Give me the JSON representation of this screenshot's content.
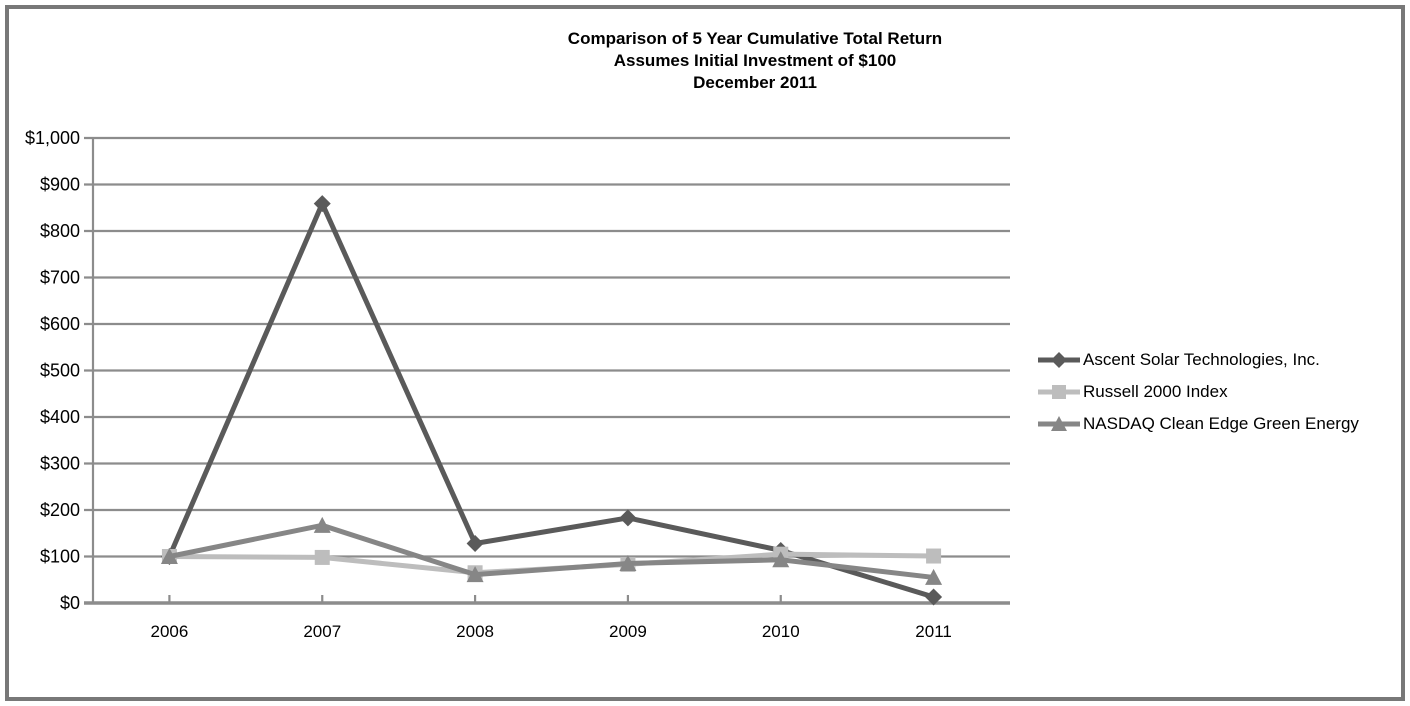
{
  "title": {
    "line1": "Comparison of 5 Year Cumulative Total Return",
    "line2": "Assumes Initial Investment of $100",
    "line3": "December 2011"
  },
  "colors": {
    "ascent": "#5a5a5a",
    "russell": "#bdbdbd",
    "nasdaq": "#868686",
    "gridline": "#8c8c8c",
    "axis": "#8c8c8c",
    "frame": "#787878",
    "text": "#000000",
    "background": "#ffffff"
  },
  "chart_data": {
    "type": "line",
    "title": "Comparison of 5 Year Cumulative Total Return / Assumes Initial Investment of $100 / December 2011",
    "xlabel": "",
    "ylabel": "",
    "categories": [
      "2006",
      "2007",
      "2008",
      "2009",
      "2010",
      "2011"
    ],
    "series": [
      {
        "name": "Ascent Solar Technologies, Inc.",
        "marker": "diamond",
        "color_key": "ascent",
        "values": [
          100,
          859,
          128,
          183,
          113,
          13
        ]
      },
      {
        "name": "Russell 2000 Index",
        "marker": "square",
        "color_key": "russell",
        "values": [
          100,
          98,
          65,
          83,
          105,
          101
        ]
      },
      {
        "name": "NASDAQ Clean Edge Green Energy",
        "marker": "triangle",
        "color_key": "nasdaq",
        "values": [
          100,
          167,
          61,
          85,
          93,
          55
        ]
      }
    ],
    "ylim": [
      0,
      1000
    ],
    "ytick_step": 100,
    "ytick_labels": [
      "$0",
      "$100",
      "$200",
      "$300",
      "$400",
      "$500",
      "$600",
      "$700",
      "$800",
      "$900",
      "$1,000"
    ],
    "grid": true,
    "legend_position": "right"
  }
}
